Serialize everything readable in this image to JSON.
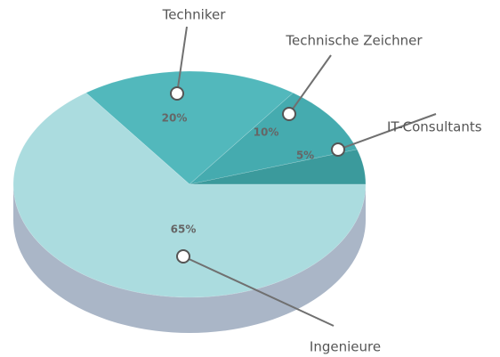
{
  "chart_data": {
    "type": "pie",
    "categories": [
      "IT-Consultants",
      "Technische Zeichner",
      "Techniker",
      "Ingenieure"
    ],
    "values": [
      5,
      10,
      20,
      65
    ],
    "value_labels": [
      "5%",
      "10%",
      "20%",
      "65%"
    ],
    "colors": [
      "#3b9a9c",
      "#45abaf",
      "#52b8bc",
      "#abdcdf"
    ],
    "side_color": "#aab6c7"
  }
}
